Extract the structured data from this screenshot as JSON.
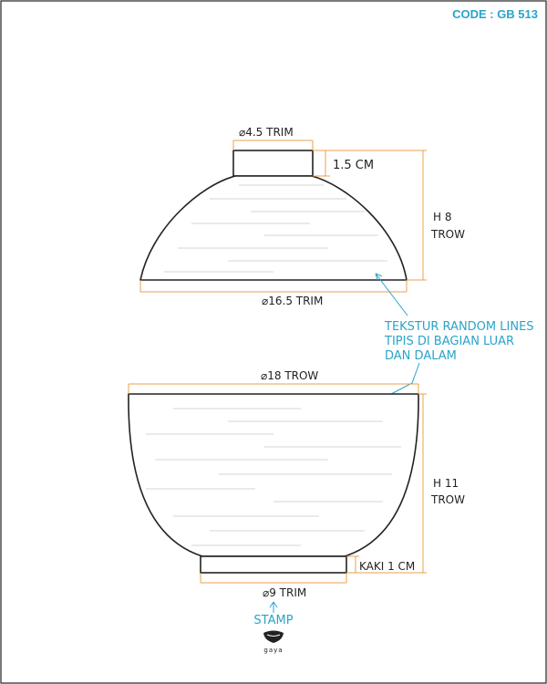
{
  "code": "CODE : GB 513",
  "lid": {
    "knob_diameter": "4.5 TRIM",
    "knob_height": "1.5 CM",
    "height_value": "H 8",
    "height_unit": "TROW",
    "base_diameter": "16.5 TRIM"
  },
  "texture_note": {
    "line1": "TEKSTUR RANDOM LINES",
    "line2": "TIPIS DI BAGIAN LUAR",
    "line3": "DAN DALAM"
  },
  "bowl": {
    "rim_diameter": "18 TROW",
    "height_value": "H 11",
    "height_unit": "TROW",
    "foot_height": "KAKI 1 CM",
    "foot_diameter": "9 TRIM"
  },
  "stamp": {
    "label": "STAMP",
    "logo_text": "gaya"
  },
  "symbols": {
    "diameter": "⌀"
  },
  "colors": {
    "annotation": "#2aa4c8",
    "dimension": "#e8a04c",
    "outline": "#222222"
  }
}
